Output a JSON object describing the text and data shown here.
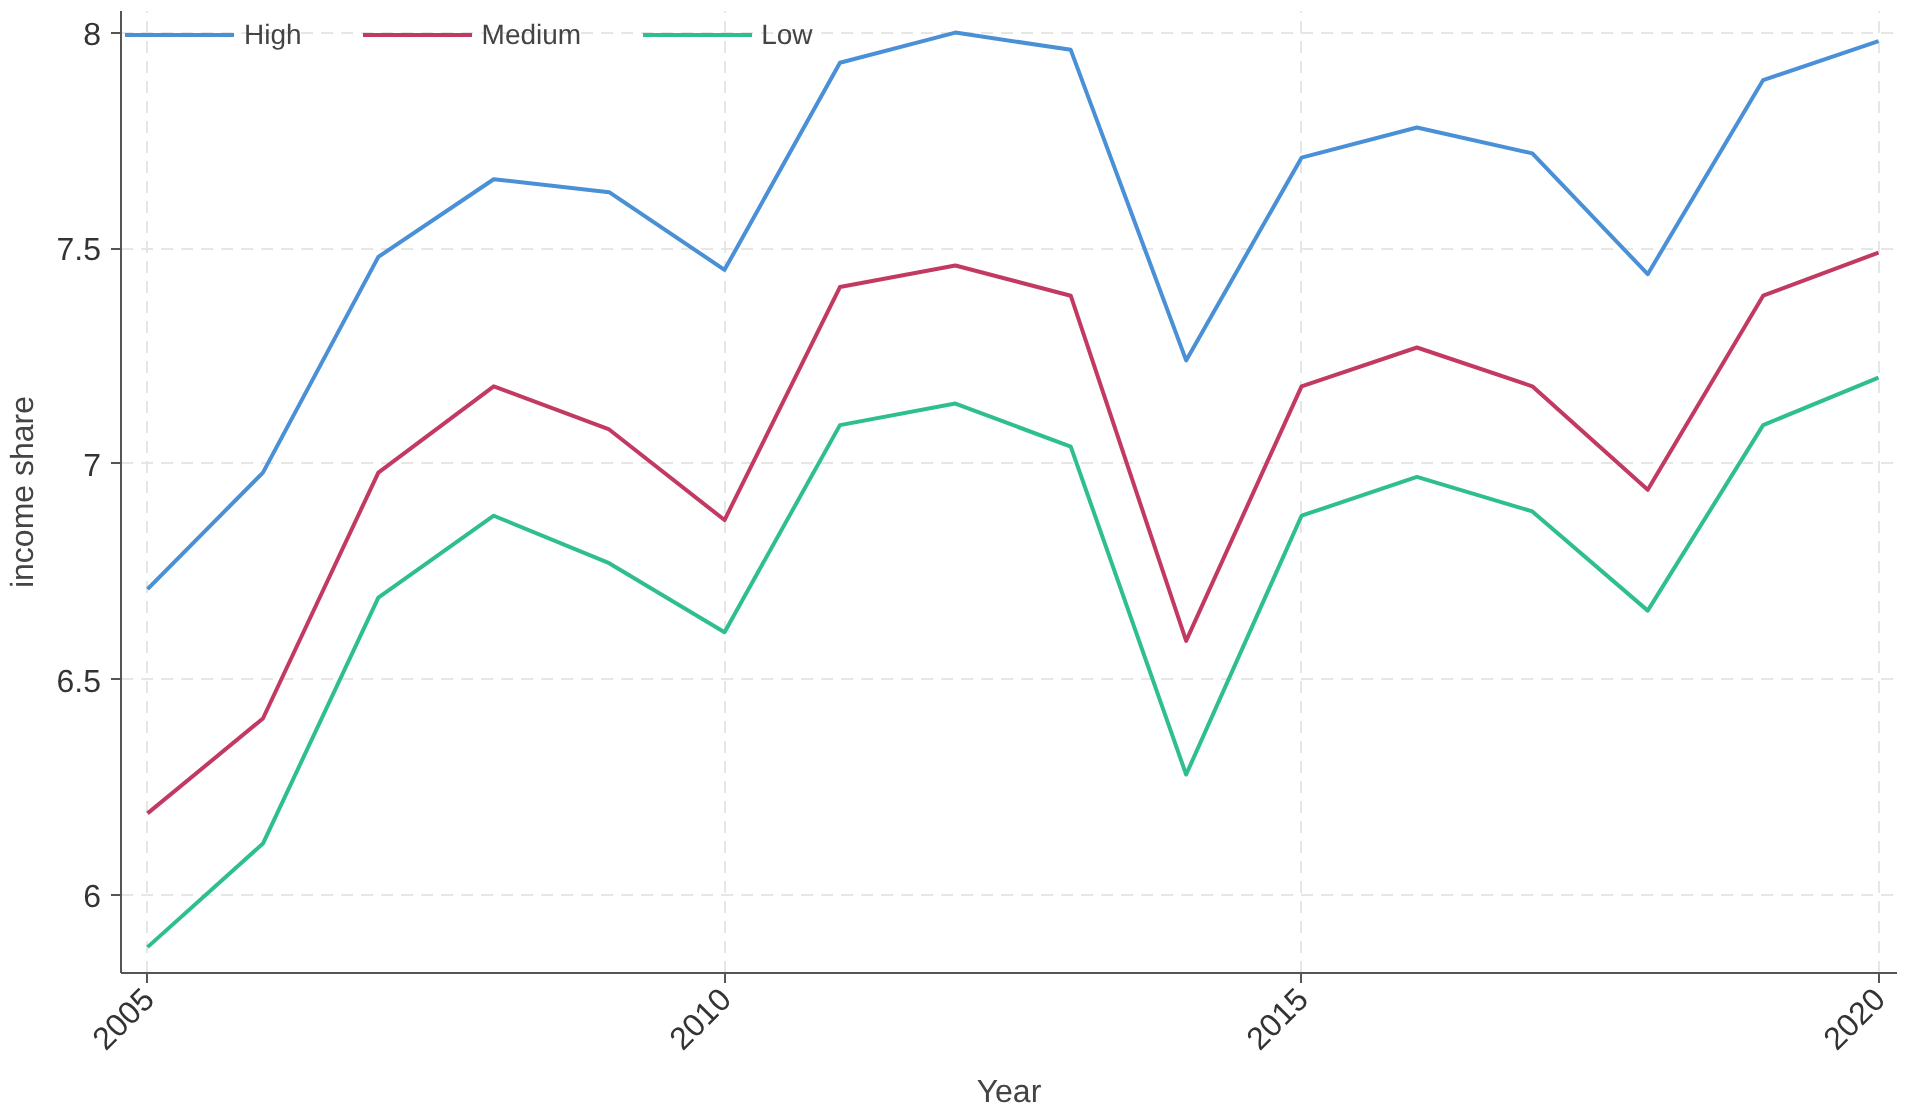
{
  "chart_data": {
    "type": "line",
    "xlabel": "Year",
    "ylabel": "income share",
    "x": [
      2005,
      2006,
      2007,
      2008,
      2009,
      2010,
      2011,
      2012,
      2013,
      2014,
      2015,
      2016,
      2017,
      2018,
      2019,
      2020
    ],
    "series": [
      {
        "name": "High",
        "color": "#4a90d6",
        "values": [
          6.71,
          6.98,
          7.48,
          7.66,
          7.63,
          7.45,
          7.93,
          8.0,
          7.96,
          7.24,
          7.71,
          7.78,
          7.72,
          7.44,
          7.89,
          7.98
        ]
      },
      {
        "name": "Medium",
        "color": "#c23a62",
        "values": [
          6.19,
          6.41,
          6.98,
          7.18,
          7.08,
          6.87,
          7.41,
          7.46,
          7.39,
          6.59,
          7.18,
          7.27,
          7.18,
          6.94,
          7.39,
          7.49
        ]
      },
      {
        "name": "Low",
        "color": "#2fbf8f",
        "values": [
          5.88,
          6.12,
          6.69,
          6.88,
          6.77,
          6.61,
          7.09,
          7.14,
          7.04,
          6.28,
          6.88,
          6.97,
          6.89,
          6.66,
          7.09,
          7.2
        ]
      }
    ],
    "xlim": [
      2004.77,
      2020.16
    ],
    "ylim": [
      5.82,
      8.05
    ],
    "xticks": [
      2005,
      2010,
      2015,
      2020
    ],
    "yticks": [
      6,
      6.5,
      7,
      7.5,
      8
    ],
    "grid": true,
    "legend": "top left",
    "line_style": "solid"
  }
}
